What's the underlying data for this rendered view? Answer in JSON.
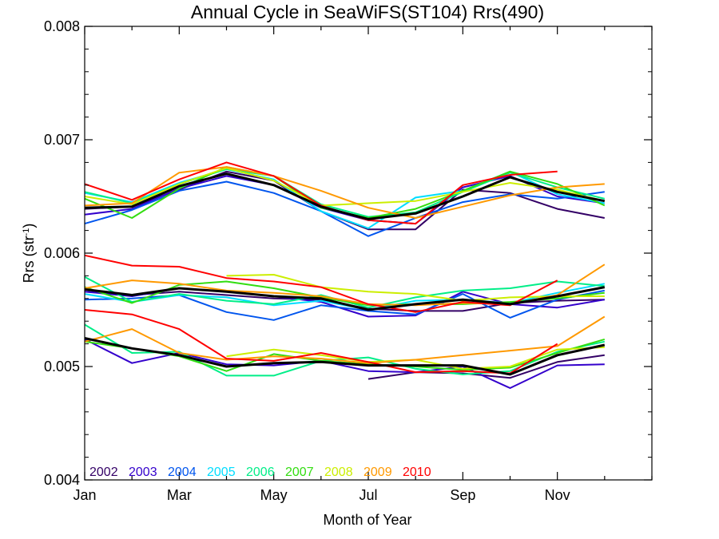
{
  "chart_data": {
    "type": "line",
    "title": "Annual Cycle in SeaWiFS(ST104) Rrs(490)",
    "xlabel": "Month of Year",
    "ylabel_main": "Rrs (str",
    "ylabel_sup": "-1",
    "ylabel_close": ")",
    "xlim": [
      1,
      13
    ],
    "ylim": [
      0.004,
      0.008
    ],
    "x_ticks": [
      {
        "value": 1,
        "label": "Jan"
      },
      {
        "value": 3,
        "label": "Mar"
      },
      {
        "value": 5,
        "label": "May"
      },
      {
        "value": 7,
        "label": "Jul"
      },
      {
        "value": 9,
        "label": "Sep"
      },
      {
        "value": 11,
        "label": "Nov"
      }
    ],
    "y_ticks": [
      {
        "value": 0.004,
        "label": "0.004"
      },
      {
        "value": 0.005,
        "label": "0.005"
      },
      {
        "value": 0.006,
        "label": "0.006"
      },
      {
        "value": 0.007,
        "label": "0.007"
      },
      {
        "value": 0.008,
        "label": "0.008"
      }
    ],
    "legend_position": "bottom-left",
    "months": [
      1,
      2,
      3,
      4,
      5,
      6,
      7,
      8,
      9,
      10,
      11,
      12
    ],
    "series": [
      {
        "name": "2002",
        "color": "#330066",
        "groups": [
          [
            6.39,
            6.41,
            6.56,
            6.72,
            6.64,
            6.37,
            6.21,
            6.21,
            6.56,
            6.53,
            6.39,
            6.31
          ],
          [
            5.66,
            5.63,
            5.66,
            5.63,
            5.6,
            5.59,
            5.51,
            5.49,
            5.49,
            5.56,
            5.58,
            5.59
          ],
          [
            null,
            null,
            null,
            null,
            null,
            null,
            4.89,
            4.95,
            4.94,
            4.9,
            5.04,
            5.1
          ]
        ]
      },
      {
        "name": "2003",
        "color": "#3300cc",
        "groups": [
          [
            6.34,
            6.39,
            6.57,
            6.68,
            6.6,
            6.4,
            6.29,
            6.26,
            6.58,
            6.68,
            6.5,
            6.44
          ],
          [
            5.66,
            5.62,
            5.69,
            5.66,
            5.62,
            5.57,
            5.44,
            5.45,
            5.66,
            5.55,
            5.52,
            5.59
          ],
          [
            5.24,
            5.03,
            5.12,
            5.02,
            5.01,
            5.05,
            4.96,
            4.95,
            5.0,
            4.81,
            5.01,
            5.02
          ]
        ]
      },
      {
        "name": "2004",
        "color": "#0055ee",
        "groups": [
          [
            6.26,
            6.38,
            6.55,
            6.63,
            6.53,
            6.37,
            6.15,
            6.31,
            6.45,
            6.52,
            6.48,
            6.54
          ],
          [
            5.59,
            5.6,
            5.63,
            5.48,
            5.41,
            5.54,
            5.49,
            5.46,
            5.64,
            5.43,
            5.59,
            5.67
          ]
        ]
      },
      {
        "name": "2005",
        "color": "#00ddff",
        "groups": [
          [
            6.53,
            6.45,
            6.62,
            6.74,
            6.65,
            6.37,
            6.22,
            6.49,
            6.55,
            6.72,
            6.52,
            6.44
          ],
          [
            5.64,
            5.57,
            5.63,
            5.61,
            5.54,
            5.58,
            5.5,
            5.58,
            5.59,
            5.56,
            5.65,
            5.73
          ]
        ]
      },
      {
        "name": "2006",
        "color": "#00ee88",
        "groups": [
          [
            6.54,
            6.44,
            6.61,
            6.74,
            6.68,
            6.43,
            6.32,
            6.36,
            6.54,
            6.71,
            6.58,
            6.48
          ],
          [
            5.79,
            5.57,
            5.64,
            5.58,
            5.55,
            5.63,
            5.52,
            5.61,
            5.67,
            5.69,
            5.75,
            5.71
          ],
          [
            5.37,
            5.12,
            5.13,
            4.92,
            4.92,
            5.05,
            5.08,
            4.98,
            4.93,
            4.96,
            5.13,
            5.22
          ]
        ]
      },
      {
        "name": "2007",
        "color": "#33dd11",
        "groups": [
          [
            6.48,
            6.31,
            6.57,
            6.76,
            6.68,
            6.4,
            6.31,
            6.39,
            6.55,
            6.72,
            6.61,
            6.42
          ],
          [
            5.7,
            5.56,
            5.72,
            5.75,
            5.69,
            5.61,
            5.54,
            5.55,
            5.55,
            5.57,
            5.6,
            5.65
          ],
          [
            5.22,
            5.16,
            5.09,
            4.96,
            5.11,
            5.05,
            5.02,
            5.0,
            4.97,
            4.99,
            5.12,
            5.24
          ]
        ]
      },
      {
        "name": "2008",
        "color": "#ccee00",
        "groups": [
          [
            6.5,
            6.43,
            6.61,
            6.75,
            6.64,
            6.42,
            6.44,
            6.46,
            6.54,
            6.62,
            6.56,
            6.46
          ],
          [
            null,
            null,
            null,
            5.8,
            5.81,
            5.7,
            5.66,
            5.64,
            5.58,
            5.61,
            5.62,
            5.62
          ],
          [
            null,
            null,
            null,
            5.09,
            5.15,
            5.1,
            5.04,
            5.06,
            4.98,
            5.0,
            5.15,
            5.17
          ]
        ]
      },
      {
        "name": "2009",
        "color": "#ff9900",
        "groups": [
          [
            6.42,
            6.44,
            6.71,
            6.76,
            6.68,
            6.55,
            6.4,
            6.31,
            6.41,
            6.51,
            6.58,
            6.61
          ],
          [
            5.69,
            5.76,
            5.73,
            5.67,
            5.65,
            5.62,
            5.55,
            5.54,
            5.56,
            5.55,
            5.63,
            5.9
          ],
          [
            5.22,
            5.33,
            5.12,
            5.06,
            5.09,
            5.07,
            5.03,
            5.06,
            5.1,
            5.14,
            5.18,
            5.44
          ]
        ]
      },
      {
        "name": "2010",
        "color": "#ff0000",
        "groups": [
          [
            6.61,
            6.47,
            6.65,
            6.8,
            6.68,
            6.42,
            6.29,
            6.26,
            6.6,
            6.69,
            6.72,
            null
          ],
          [
            5.98,
            5.89,
            5.88,
            5.78,
            5.75,
            5.7,
            5.55,
            5.48,
            5.57,
            5.54,
            5.76,
            null
          ],
          [
            5.5,
            5.46,
            5.33,
            5.07,
            5.05,
            5.12,
            5.04,
            4.95,
            4.96,
            4.94,
            5.2,
            null
          ]
        ]
      },
      {
        "name": "",
        "color": "#000000",
        "mean": true,
        "groups": [
          [
            6.4,
            6.41,
            6.59,
            6.7,
            6.6,
            6.41,
            6.3,
            6.35,
            6.5,
            6.67,
            6.54,
            6.46
          ],
          [
            5.68,
            5.63,
            5.69,
            5.66,
            5.62,
            5.6,
            5.5,
            5.55,
            5.59,
            5.55,
            5.62,
            5.7
          ],
          [
            5.25,
            5.16,
            5.1,
            5.0,
            5.03,
            5.04,
            5.01,
            5.01,
            5.01,
            4.93,
            5.1,
            5.19
          ]
        ]
      }
    ]
  }
}
